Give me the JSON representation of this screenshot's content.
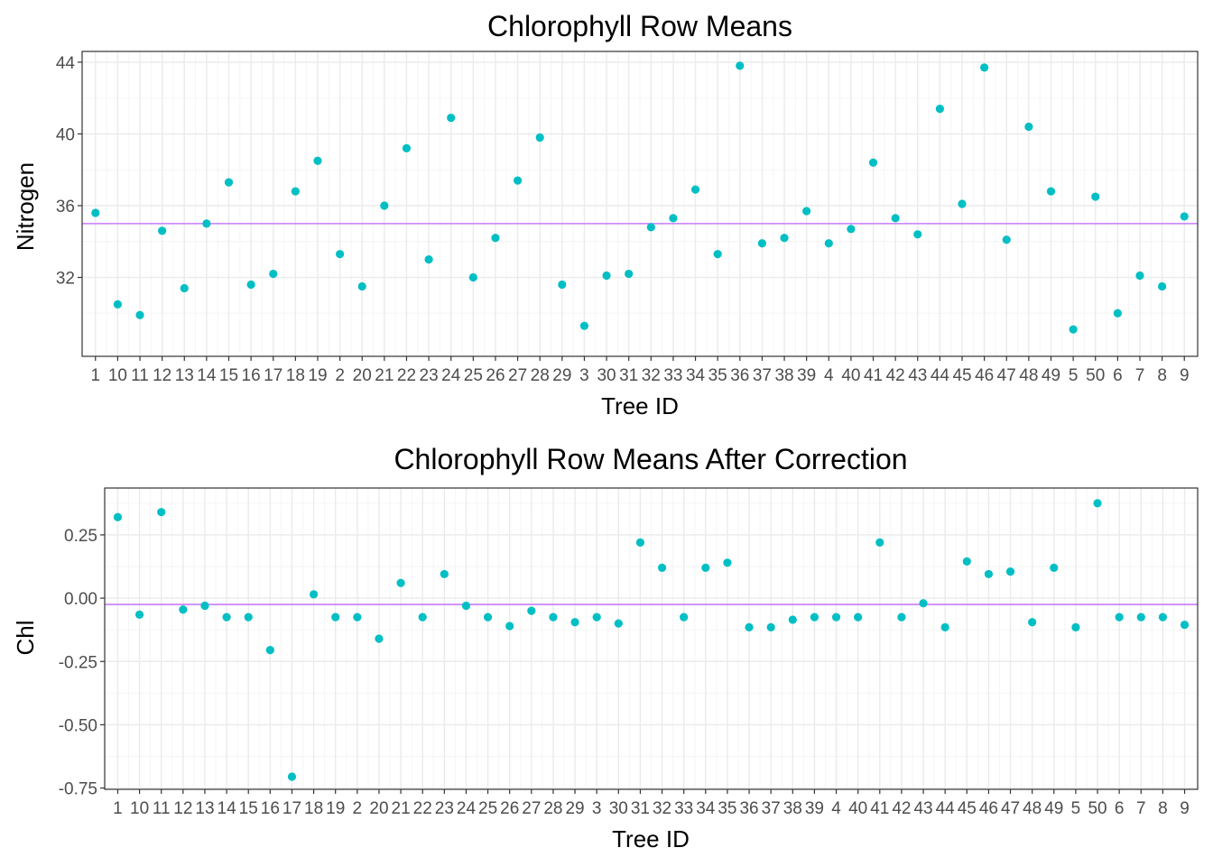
{
  "colors": {
    "point": "#00BFC4",
    "mean_line": "#C77CFF",
    "grid_major": "#EBEBEB",
    "grid_minor": "#F5F5F5",
    "panel_border": "#333333",
    "axis_text": "#4D4D4D"
  },
  "chart_data": [
    {
      "type": "scatter",
      "title": "Chlorophyll Row Means",
      "xlabel": "Tree ID",
      "ylabel": "Nitrogen",
      "categories": [
        "1",
        "10",
        "11",
        "12",
        "13",
        "14",
        "15",
        "16",
        "17",
        "18",
        "19",
        "2",
        "20",
        "21",
        "22",
        "23",
        "24",
        "25",
        "26",
        "27",
        "28",
        "29",
        "3",
        "30",
        "31",
        "32",
        "33",
        "34",
        "35",
        "36",
        "37",
        "38",
        "39",
        "4",
        "40",
        "41",
        "42",
        "43",
        "44",
        "45",
        "46",
        "47",
        "48",
        "49",
        "5",
        "50",
        "6",
        "7",
        "8",
        "9"
      ],
      "values": [
        35.6,
        30.5,
        29.9,
        34.6,
        31.4,
        35.0,
        37.3,
        31.6,
        32.2,
        36.8,
        38.5,
        33.3,
        31.5,
        36.0,
        39.2,
        33.0,
        40.9,
        32.0,
        34.2,
        37.4,
        39.8,
        31.6,
        29.3,
        32.1,
        32.2,
        34.8,
        35.3,
        36.9,
        33.3,
        43.8,
        33.9,
        34.2,
        35.7,
        33.9,
        34.7,
        38.4,
        35.3,
        34.4,
        41.4,
        36.1,
        43.7,
        34.1,
        40.4,
        36.8,
        29.1,
        36.5,
        30.0,
        32.1,
        31.5,
        35.4
      ],
      "mean_line": 35.0,
      "ylim": [
        27.6,
        44.6
      ],
      "yticks": [
        "32",
        "36",
        "40",
        "44"
      ],
      "grid": true,
      "legend": "none"
    },
    {
      "type": "scatter",
      "title": "Chlorophyll Row Means After Correction",
      "xlabel": "Tree ID",
      "ylabel": "Chl",
      "categories": [
        "1",
        "10",
        "11",
        "12",
        "13",
        "14",
        "15",
        "16",
        "17",
        "18",
        "19",
        "2",
        "20",
        "21",
        "22",
        "23",
        "24",
        "25",
        "26",
        "27",
        "28",
        "29",
        "3",
        "30",
        "31",
        "32",
        "33",
        "34",
        "35",
        "36",
        "37",
        "38",
        "39",
        "4",
        "40",
        "41",
        "42",
        "43",
        "44",
        "45",
        "46",
        "47",
        "48",
        "49",
        "5",
        "50",
        "6",
        "7",
        "8",
        "9"
      ],
      "values": [
        0.32,
        -0.065,
        0.34,
        -0.045,
        -0.03,
        -0.075,
        -0.075,
        -0.205,
        -0.705,
        0.015,
        -0.075,
        -0.075,
        -0.16,
        0.06,
        -0.075,
        0.095,
        -0.03,
        -0.075,
        -0.11,
        -0.05,
        -0.075,
        -0.095,
        -0.075,
        -0.1,
        0.22,
        0.12,
        -0.075,
        0.12,
        0.14,
        -0.115,
        -0.115,
        -0.085,
        -0.075,
        -0.075,
        -0.075,
        0.22,
        -0.075,
        -0.02,
        -0.115,
        0.145,
        0.095,
        0.105,
        -0.095,
        0.12,
        -0.115,
        0.375,
        -0.075,
        -0.075,
        -0.075,
        -0.105
      ],
      "mean_line": -0.025,
      "ylim": [
        -0.755,
        0.435
      ],
      "yticks": [
        "0.25",
        "0.00",
        "-0.25",
        "-0.50",
        "-0.75"
      ],
      "grid": true,
      "legend": "none"
    }
  ]
}
